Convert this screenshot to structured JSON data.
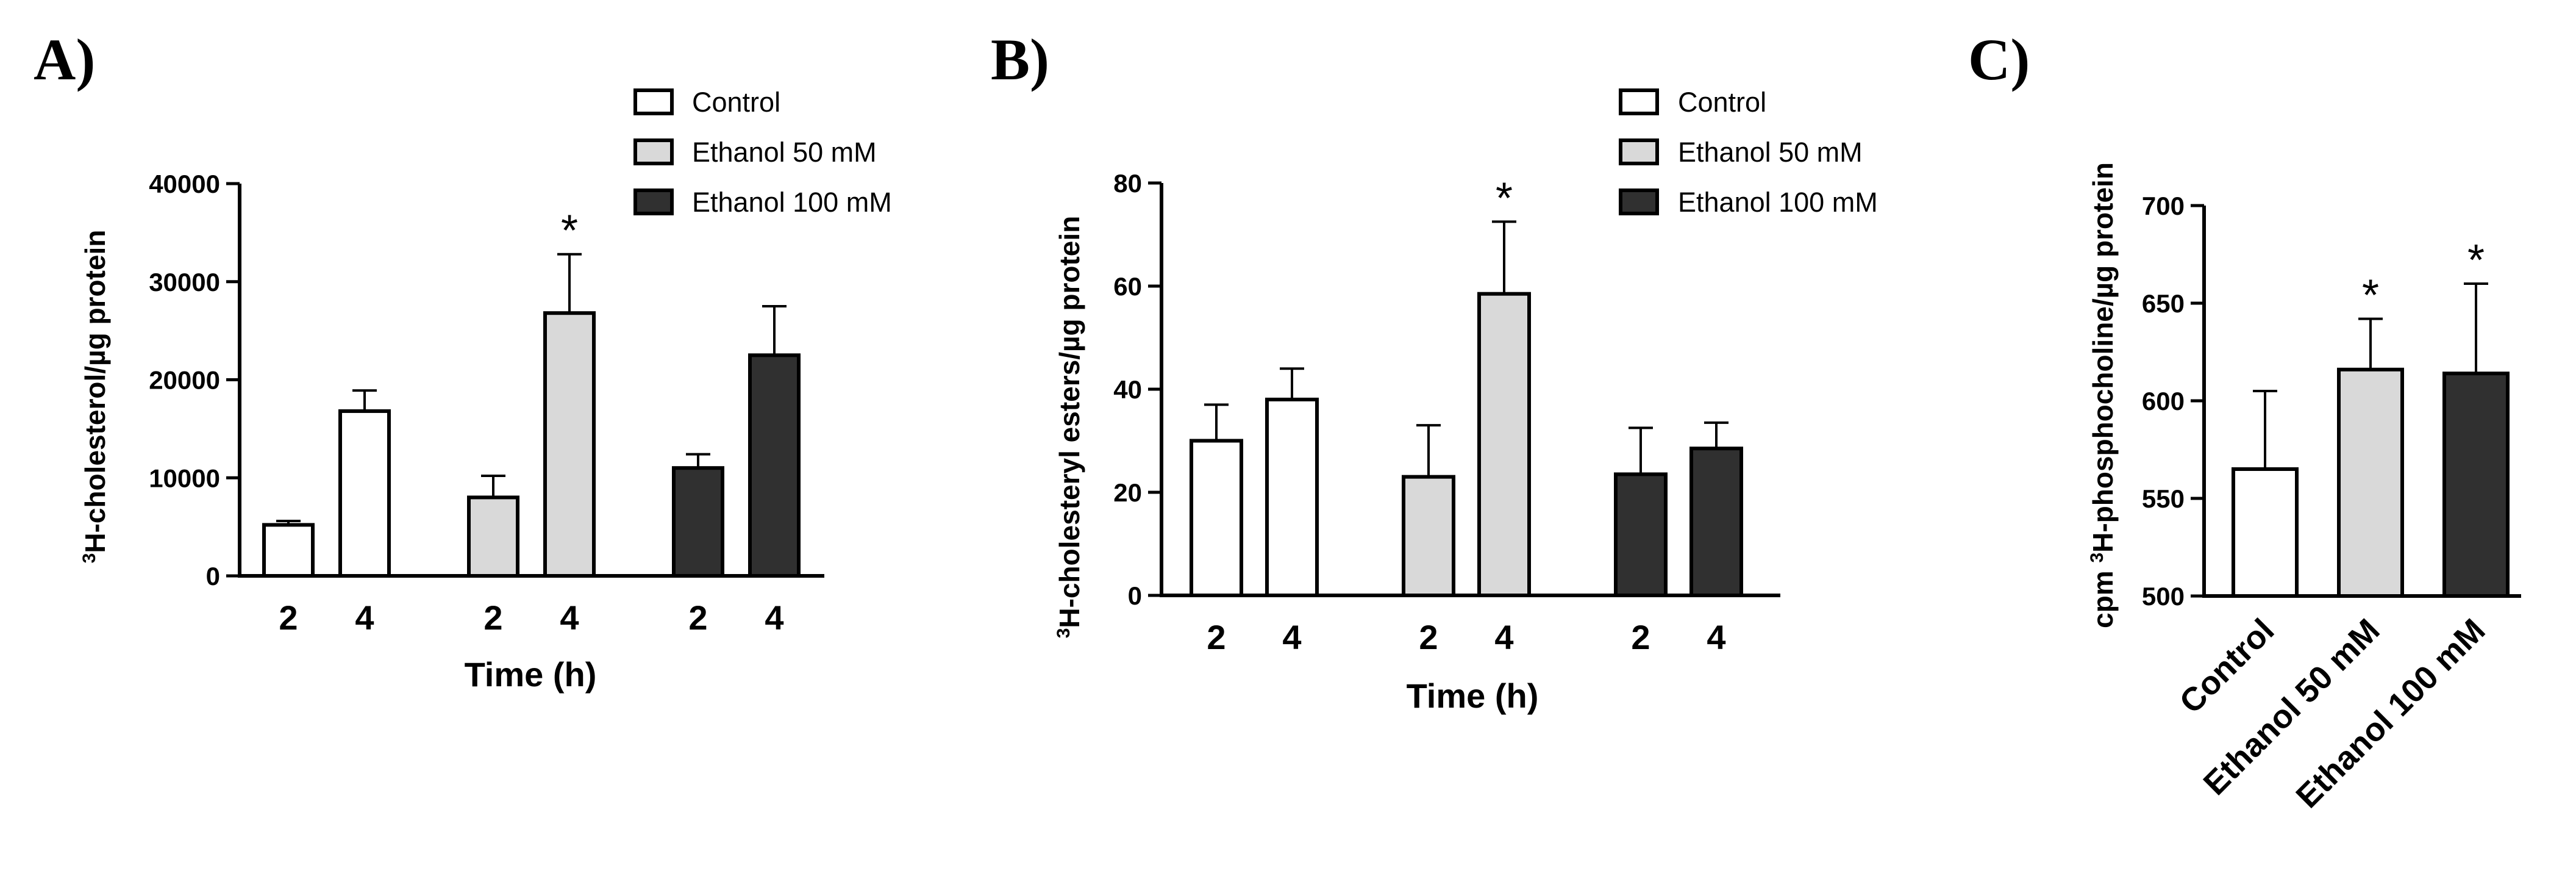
{
  "colors": {
    "control": "#ffffff",
    "ethanol_50": "#d9d9d9",
    "ethanol_100": "#303030"
  },
  "chart_data": [
    {
      "panel": "A)",
      "type": "bar",
      "ylabel_sup": "3",
      "ylabel": "H-cholesterol/µg protein",
      "xlabel": "Time (h)",
      "ylim": [
        0,
        40000
      ],
      "yticks": [
        0,
        10000,
        20000,
        30000,
        40000
      ],
      "legend": [
        "Control",
        "Ethanol 50 mM",
        "Ethanol 100 mM"
      ],
      "groups": [
        {
          "name": "Control",
          "categories": [
            "2",
            "4"
          ],
          "values": [
            5200,
            16800
          ],
          "errors": [
            400,
            2100
          ],
          "sig": [
            "",
            ""
          ]
        },
        {
          "name": "Ethanol 50 mM",
          "categories": [
            "2",
            "4"
          ],
          "values": [
            8000,
            26800
          ],
          "errors": [
            2200,
            6000
          ],
          "sig": [
            "",
            "*"
          ]
        },
        {
          "name": "Ethanol 100 mM",
          "categories": [
            "2",
            "4"
          ],
          "values": [
            11000,
            22500
          ],
          "errors": [
            1400,
            5000
          ],
          "sig": [
            "",
            ""
          ]
        }
      ]
    },
    {
      "panel": "B)",
      "type": "bar",
      "ylabel_sup": "3",
      "ylabel": "H-cholesteryl esters/µg protein",
      "xlabel": "Time (h)",
      "ylim": [
        0,
        80
      ],
      "yticks": [
        0,
        20,
        40,
        60,
        80
      ],
      "legend": [
        "Control",
        "Ethanol 50 mM",
        "Ethanol 100 mM"
      ],
      "groups": [
        {
          "name": "Control",
          "categories": [
            "2",
            "4"
          ],
          "values": [
            30,
            38
          ],
          "errors": [
            7,
            6
          ],
          "sig": [
            "",
            ""
          ]
        },
        {
          "name": "Ethanol 50 mM",
          "categories": [
            "2",
            "4"
          ],
          "values": [
            23,
            58.5
          ],
          "errors": [
            10,
            14
          ],
          "sig": [
            "",
            "*"
          ]
        },
        {
          "name": "Ethanol 100 mM",
          "categories": [
            "2",
            "4"
          ],
          "values": [
            23.5,
            28.5
          ],
          "errors": [
            9,
            5
          ],
          "sig": [
            "",
            ""
          ]
        }
      ]
    },
    {
      "panel": "C)",
      "type": "bar",
      "ylabel_pre": "cpm ",
      "ylabel_sup": "3",
      "ylabel": "H-phosphocholine/µg protein",
      "xlabel": "",
      "ylim": [
        500,
        700
      ],
      "yticks": [
        500,
        550,
        600,
        650,
        700
      ],
      "categories": [
        "Control",
        "Ethanol 50 mM",
        "Ethanol 100 mM"
      ],
      "values": [
        565,
        616,
        614
      ],
      "errors": [
        40,
        26,
        46
      ],
      "sig": [
        "",
        "*",
        "*"
      ]
    }
  ]
}
